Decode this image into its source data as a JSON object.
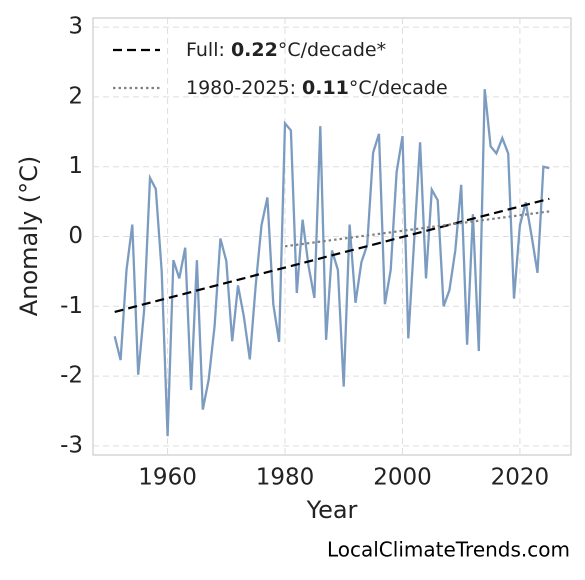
{
  "chart_data": {
    "type": "line",
    "x_label": "Year",
    "y_label": "Anomaly (°C)",
    "credit": "LocalClimateTrends.com",
    "xlim": [
      1947.3,
      2028.7
    ],
    "ylim": [
      -3.13,
      3.13
    ],
    "xticks": [
      1960,
      1980,
      2000,
      2020
    ],
    "yticks": [
      -3,
      -2,
      -1,
      0,
      1,
      2,
      3
    ],
    "x": [
      1951,
      1952,
      1953,
      1954,
      1955,
      1956,
      1957,
      1958,
      1959,
      1960,
      1961,
      1962,
      1963,
      1964,
      1965,
      1966,
      1967,
      1968,
      1969,
      1970,
      1971,
      1972,
      1973,
      1974,
      1975,
      1976,
      1977,
      1978,
      1979,
      1980,
      1981,
      1982,
      1983,
      1984,
      1985,
      1986,
      1987,
      1988,
      1989,
      1990,
      1991,
      1992,
      1993,
      1994,
      1995,
      1996,
      1997,
      1998,
      1999,
      2000,
      2001,
      2002,
      2003,
      2004,
      2005,
      2006,
      2007,
      2008,
      2009,
      2010,
      2011,
      2012,
      2013,
      2014,
      2015,
      2016,
      2017,
      2018,
      2019,
      2020,
      2021,
      2022,
      2023,
      2024,
      2025
    ],
    "values": [
      -1.43,
      -1.77,
      -0.48,
      0.17,
      -1.98,
      -1.06,
      0.84,
      0.68,
      -0.5,
      -2.86,
      -0.34,
      -0.6,
      -0.16,
      -2.2,
      -0.34,
      -2.48,
      -2.05,
      -1.28,
      -0.03,
      -0.35,
      -1.5,
      -0.7,
      -1.15,
      -1.76,
      -0.7,
      0.16,
      0.56,
      -0.97,
      -1.51,
      1.62,
      1.52,
      -0.81,
      0.24,
      -0.42,
      -0.88,
      1.58,
      -1.48,
      -0.2,
      -0.48,
      -2.15,
      0.17,
      -0.95,
      -0.37,
      -0.12,
      1.2,
      1.47,
      -0.97,
      -0.48,
      0.92,
      1.44,
      -1.46,
      -0.05,
      1.35,
      -0.6,
      0.67,
      0.52,
      -1.0,
      -0.77,
      -0.2,
      0.74,
      -1.55,
      0.32,
      -1.64,
      2.11,
      1.29,
      1.19,
      1.41,
      1.19,
      -0.89,
      0.16,
      0.49,
      0,
      -0.52,
      1.0,
      0.98
    ],
    "color": "#7b9cc0",
    "trends": [
      {
        "name": [
          "Full: ",
          "0.22",
          "°C/decade*"
        ],
        "color": "#000000",
        "dash": "dashed",
        "x": [
          1951,
          2025
        ],
        "values": [
          -1.08,
          0.54
        ]
      },
      {
        "name": [
          "1980-2025: ",
          "0.11",
          "°C/decade"
        ],
        "color": "#808080",
        "dash": "dotted",
        "x": [
          1980,
          2025
        ],
        "values": [
          -0.14,
          0.36
        ]
      }
    ],
    "grid": true,
    "legend": "upper left"
  }
}
